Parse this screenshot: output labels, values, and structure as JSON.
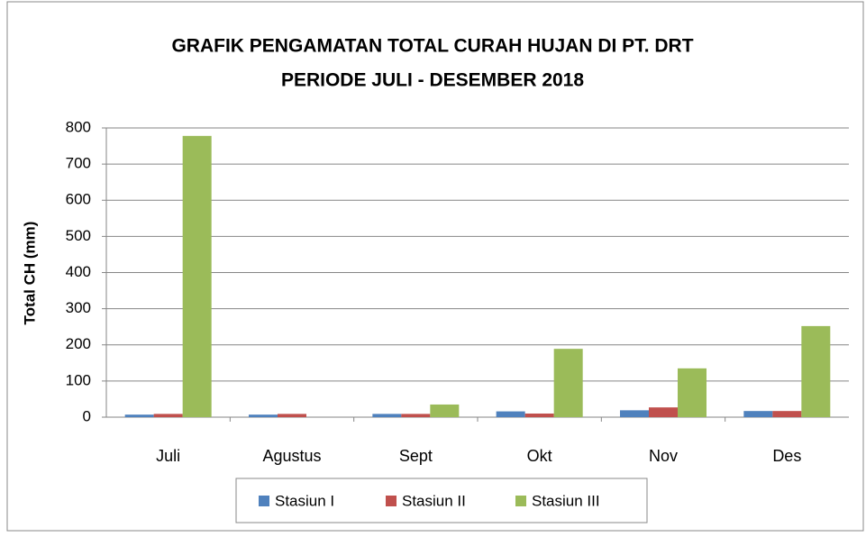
{
  "chart_data": {
    "type": "bar",
    "title": [
      "GRAFIK PENGAMATAN TOTAL CURAH HUJAN DI PT. DRT",
      "PERIODE JULI - DESEMBER 2018"
    ],
    "y_label": "Total CH (mm)",
    "categories": [
      "Juli",
      "Agustus",
      "Sept",
      "Okt",
      "Nov",
      "Des"
    ],
    "series": [
      {
        "name": "Stasiun I",
        "color": "#4f81bd",
        "values": [
          7,
          7,
          9,
          16,
          19,
          17
        ]
      },
      {
        "name": "Stasiun II",
        "color": "#c0504d",
        "values": [
          9,
          9,
          9,
          10,
          27,
          17
        ]
      },
      {
        "name": "Stasiun III",
        "color": "#9bbb59",
        "values": [
          778,
          0,
          35,
          189,
          135,
          252
        ]
      }
    ],
    "ylim": [
      0,
      800
    ],
    "yticks": [
      0,
      100,
      200,
      300,
      400,
      500,
      600,
      700,
      800
    ],
    "grid": true,
    "legend": "bottom"
  }
}
